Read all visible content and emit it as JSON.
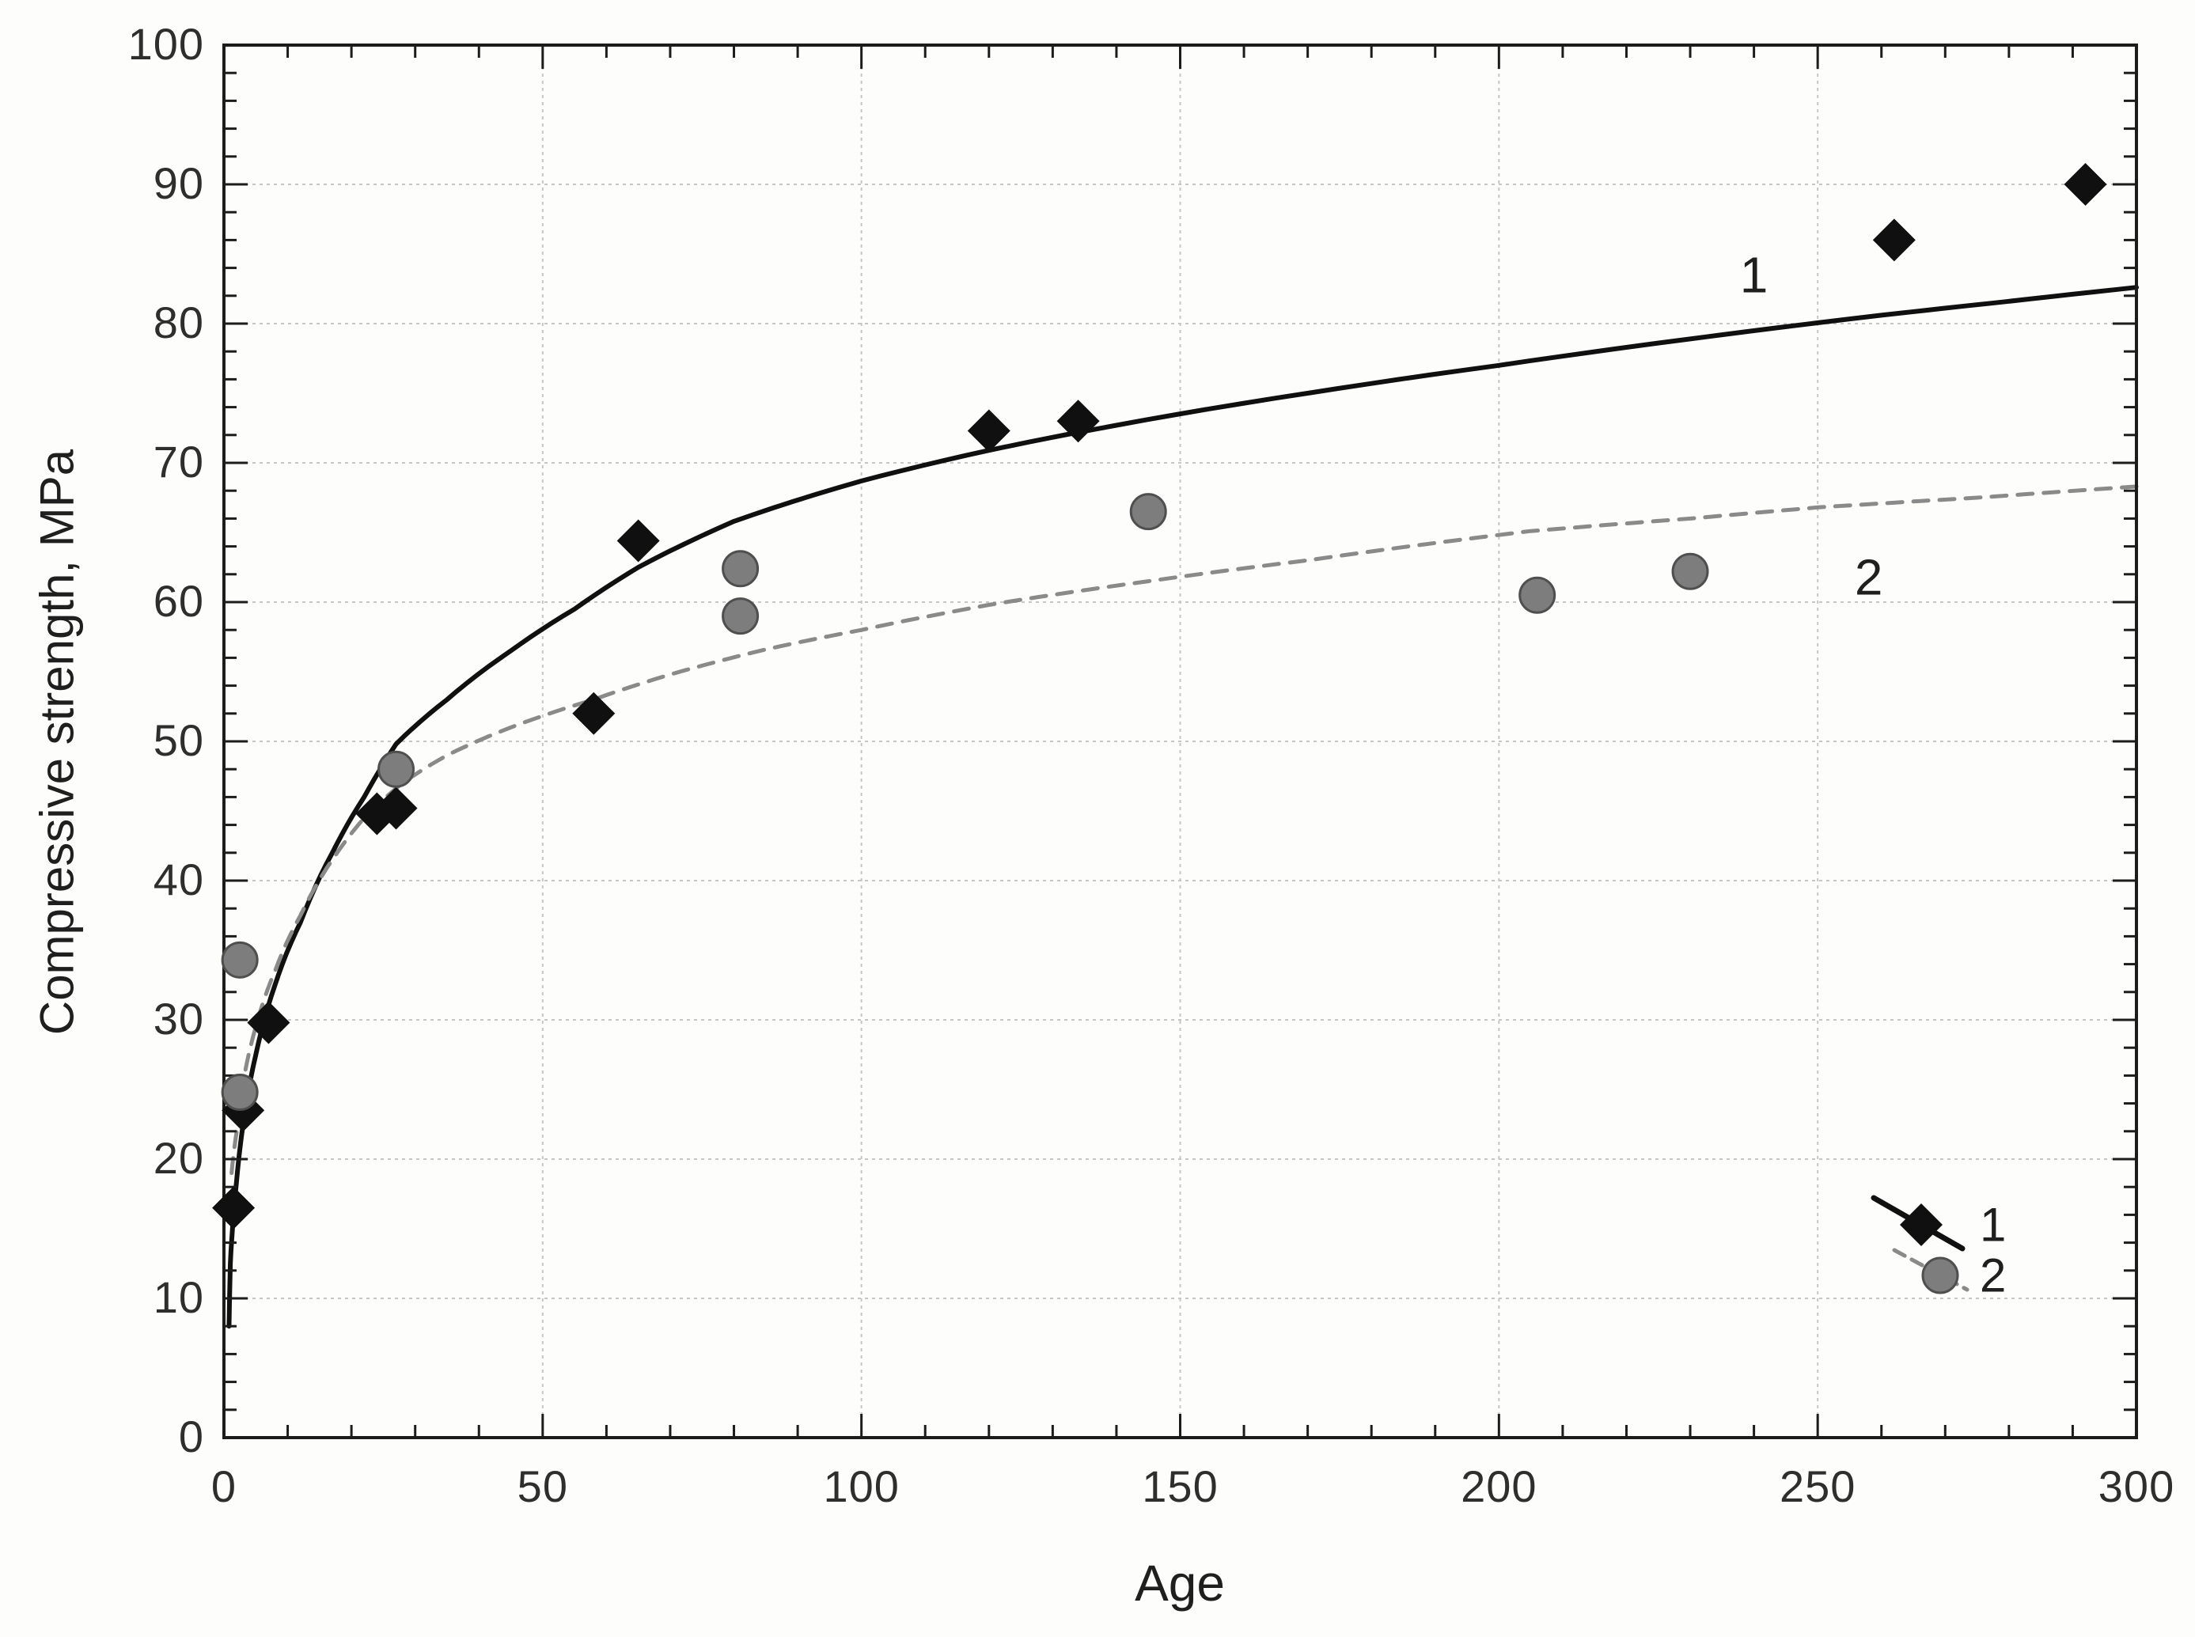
{
  "chart_data": {
    "type": "scatter",
    "title": "",
    "xlabel": "Age",
    "ylabel": "Compressive strength, MPa",
    "xlim": [
      0,
      300
    ],
    "ylim": [
      0,
      100
    ],
    "x_major_ticks": [
      0,
      50,
      100,
      150,
      200,
      250,
      300
    ],
    "x_minor_step": 10,
    "y_major_ticks": [
      0,
      10,
      20,
      30,
      40,
      50,
      60,
      70,
      80,
      90,
      100
    ],
    "y_minor_step": 2,
    "grid": {
      "vertical": [
        50,
        100,
        150,
        200,
        250
      ],
      "horizontal": [
        10,
        20,
        30,
        40,
        50,
        60,
        70,
        80,
        90
      ]
    },
    "colors": {
      "frame": "#1c1c1c",
      "gridline": "#c6c6c6",
      "series1": "#101010",
      "series2_fill": "#7d7d7d",
      "series2_edge": "#4f4f4f",
      "dashed_line": "#8a8a8a",
      "text": "#1f1f1f"
    },
    "series": [
      {
        "name": "1",
        "marker": "diamond",
        "line_style": "solid",
        "points": [
          [
            1.5,
            16.5
          ],
          [
            3,
            23.5
          ],
          [
            7,
            29.8
          ],
          [
            24,
            44.8
          ],
          [
            27,
            45.2
          ],
          [
            58,
            52
          ],
          [
            65,
            64.4
          ],
          [
            120,
            72.3
          ],
          [
            134,
            73
          ],
          [
            262,
            86
          ],
          [
            292,
            90
          ]
        ],
        "fit_curve": [
          [
            0.8,
            8
          ],
          [
            1,
            12.5
          ],
          [
            2,
            18.5
          ],
          [
            3,
            22.5
          ],
          [
            5,
            27.5
          ],
          [
            8,
            32.5
          ],
          [
            12,
            37
          ],
          [
            17,
            42
          ],
          [
            22,
            46
          ],
          [
            27,
            49.8
          ],
          [
            35,
            53
          ],
          [
            45,
            56.5
          ],
          [
            55,
            59.5
          ],
          [
            65,
            62.5
          ],
          [
            80,
            65.8
          ],
          [
            100,
            68.7
          ],
          [
            120,
            70.9
          ],
          [
            140,
            72.7
          ],
          [
            170,
            75
          ],
          [
            200,
            77
          ],
          [
            230,
            78.9
          ],
          [
            260,
            80.6
          ],
          [
            280,
            81.6
          ],
          [
            300,
            82.6
          ]
        ],
        "annotation": {
          "text": "1",
          "x": 240,
          "y": 83.5
        }
      },
      {
        "name": "2",
        "marker": "circle",
        "line_style": "dashed",
        "points": [
          [
            2.5,
            34.3
          ],
          [
            2.5,
            24.8
          ],
          [
            27,
            48
          ],
          [
            81,
            62.4
          ],
          [
            81,
            59
          ],
          [
            145,
            66.5
          ],
          [
            206,
            60.5
          ],
          [
            230,
            62.2
          ]
        ],
        "fit_curve": [
          [
            1.2,
            19
          ],
          [
            2,
            22
          ],
          [
            3,
            25.5
          ],
          [
            5,
            29.5
          ],
          [
            8,
            33.5
          ],
          [
            12,
            37.5
          ],
          [
            17,
            41.5
          ],
          [
            22,
            44.5
          ],
          [
            28,
            47
          ],
          [
            35,
            49
          ],
          [
            45,
            51
          ],
          [
            58,
            53
          ],
          [
            70,
            54.8
          ],
          [
            85,
            56.6
          ],
          [
            100,
            58
          ],
          [
            120,
            59.8
          ],
          [
            145,
            61.5
          ],
          [
            170,
            63
          ],
          [
            205,
            65.1
          ],
          [
            230,
            66
          ],
          [
            250,
            66.8
          ],
          [
            275,
            67.5
          ],
          [
            300,
            68.3
          ]
        ],
        "annotation": {
          "text": "2",
          "x": 258,
          "y": 61.8
        }
      }
    ],
    "legend": {
      "items": [
        {
          "label": "1"
        },
        {
          "label": "2"
        }
      ]
    }
  }
}
